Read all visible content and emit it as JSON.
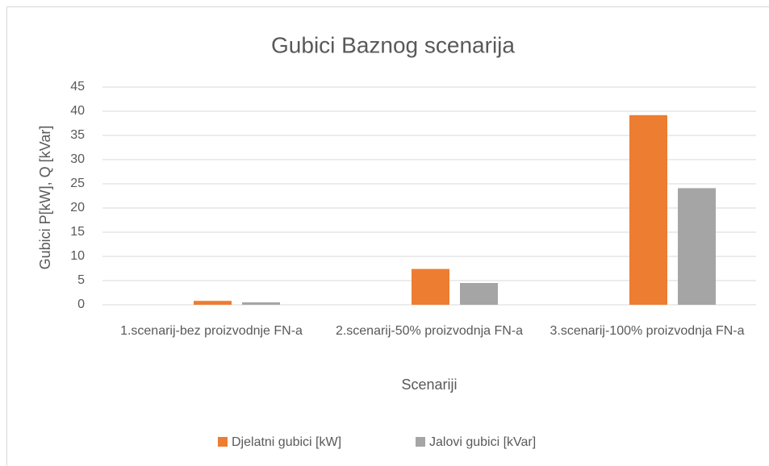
{
  "chart_data": {
    "type": "bar",
    "title": "Gubici Baznog scenarija",
    "x_label": "Scenariji",
    "y_label": "Gubici P[kW], Q [kVar]",
    "categories": [
      "1.scenarij-bez proizvodnje FN-a",
      "2.scenarij-50% proizvodnja FN-a",
      "3.scenarij-100% proizvodnja FN-a"
    ],
    "series": [
      {
        "name": "Djelatni gubici [kW]",
        "color": "#ed7d31",
        "values": [
          0.8,
          7.4,
          39.2
        ]
      },
      {
        "name": "Jalovi gubici [kVar]",
        "color": "#a5a5a5",
        "values": [
          0.5,
          4.5,
          24.1
        ]
      }
    ],
    "ylim": [
      0,
      45
    ],
    "yticks": [
      0,
      5,
      10,
      15,
      20,
      25,
      30,
      35,
      40,
      45
    ],
    "grid": true,
    "legend": "bottom"
  }
}
